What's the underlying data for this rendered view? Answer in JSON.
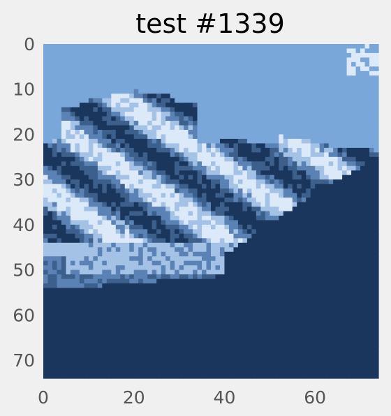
{
  "chart_data": {
    "type": "heatmap",
    "title": "test #1339",
    "xlabel": "",
    "ylabel": "",
    "xlim": [
      0,
      74
    ],
    "ylim": [
      74,
      0
    ],
    "grid": false,
    "x_ticks": [
      "0",
      "20",
      "40",
      "60"
    ],
    "y_ticks": [
      "0",
      "10",
      "20",
      "30",
      "40",
      "50",
      "60",
      "70"
    ],
    "palette_levels": {
      "sky": "#7aa7d9",
      "ice": "#dce9f8",
      "light_rock": "#a3c2e6",
      "mid_rock": "#5a82b4",
      "shadow": "#3c5f8c",
      "dark": "#1b365d"
    },
    "description_colors": [
      "#7aa7d9",
      "#dce9f8",
      "#a3c2e6",
      "#5a82b4",
      "#3c5f8c",
      "#1b365d"
    ]
  }
}
